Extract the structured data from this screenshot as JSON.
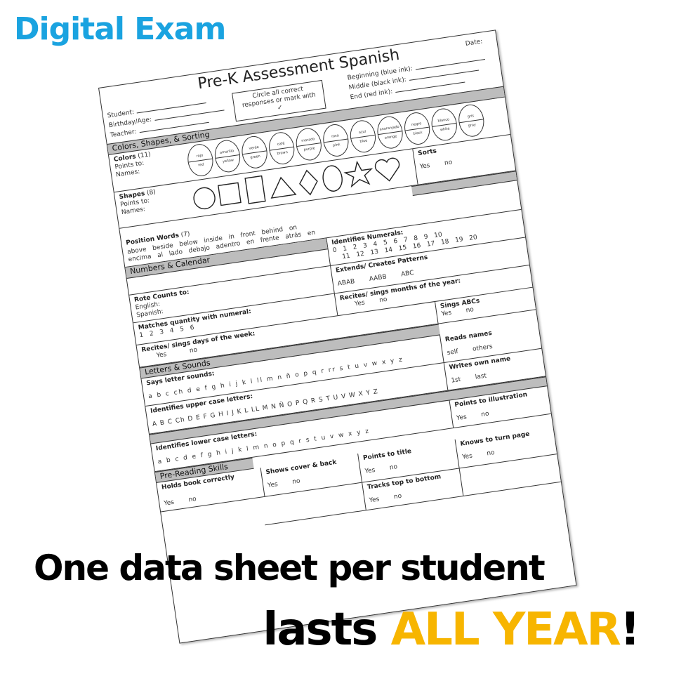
{
  "brand": "Digital Exam",
  "sheet": {
    "title": "Pre-K Assessment Spanish",
    "date": "Date:",
    "instruction": "Circle all correct responses or mark with ✓",
    "beginning": "Beginning (blue ink):",
    "middle": "Middle (black ink):",
    "end": "End (red ink):",
    "student": "Student:",
    "birthday": "Birthday/Age:",
    "teacher": "Teacher:",
    "sections": {
      "colors": "Colors, Shapes, & Sorting",
      "numbers": "Numbers & Calendar",
      "letters": "Letters & Sounds",
      "reading": "Pre-Reading Skills"
    },
    "colors": {
      "label": "Colors",
      "count": "(11)",
      "points": "Points to:",
      "names": "Names:",
      "items": [
        [
          "rojo",
          "red"
        ],
        [
          "amarillo",
          "yellow"
        ],
        [
          "verde",
          "green"
        ],
        [
          "café",
          "brown"
        ],
        [
          "morado",
          "purple"
        ],
        [
          "rosa",
          "pink"
        ],
        [
          "azul",
          "blue"
        ],
        [
          "anaranjado",
          "orange"
        ],
        [
          "negro",
          "black"
        ],
        [
          "blanco",
          "white"
        ],
        [
          "gris",
          "gray"
        ]
      ]
    },
    "shapes": {
      "label": "Shapes",
      "count": "(8)",
      "points": "Points to:",
      "names": "Names:"
    },
    "sorts": {
      "label": "Sorts",
      "options": "Yes no"
    },
    "position": {
      "label": "Position Words",
      "count": "(7)",
      "english": "above beside below inside in front behind on",
      "spanish": "encima al lado debajo adentro en frente atrás en"
    },
    "numerals": {
      "label": "Identifies Numerals:",
      "row1": "0 1 2 3 4 5 6 7 8 9 10",
      "row2": "11 12 13 14 15 16 17 18 19 20"
    },
    "rote": {
      "label": "Rote Counts to:",
      "english": "English:",
      "spanish": "Spanish:"
    },
    "patterns": {
      "label": "Extends/ Creates Patterns",
      "options": "ABAB AABB ABC"
    },
    "matches": {
      "label": "Matches quantity with numeral:",
      "options": "1 2 3 4 5 6"
    },
    "months": {
      "label": "Recites/ sings months of the year:",
      "options": "Yes no"
    },
    "days": {
      "label": "Recites/ sings days of the week:",
      "options": "Yes no"
    },
    "abcs": {
      "label": "Sings ABCs",
      "options": "Yes no"
    },
    "sounds": {
      "label": "Says letter sounds:",
      "letters": "a b c ch d e f g h i j k l ll m n ñ o p q r rr s t u v w x y z"
    },
    "readsnames": {
      "label": "Reads names",
      "options": "self others"
    },
    "upper": {
      "label": "Identifies upper case letters:",
      "letters": "A B C Ch D E F G H I J K L LL M N Ñ O P Q R S T U V W X Y Z"
    },
    "writesname": {
      "label": "Writes own name",
      "options": "1st last"
    },
    "lower": {
      "label": "Identifies lower case letters:",
      "letters": "a b c d e f g h i j k l m n o p q r s t u v w x y z"
    },
    "illustration": {
      "label": "Points to illustration",
      "options": "Yes no"
    },
    "holds": {
      "label": "Holds book correctly",
      "options": "Yes no"
    },
    "cover": {
      "label": "Shows cover & back",
      "options": "Yes no"
    },
    "ptitle": {
      "label": "Points to title",
      "options": "Yes no"
    },
    "turn": {
      "label": "Knows to turn page",
      "options": "Yes no"
    },
    "tracks": {
      "label": "Tracks top to bottom",
      "options": "Yes no"
    }
  },
  "tagline": {
    "line1": "One data sheet per student",
    "line2a": "lasts ",
    "line2b": "ALL YEAR",
    "line2c": "!"
  },
  "colors_hex": {
    "brand": "#1aa3e0",
    "highlight": "#f7b500",
    "band": "#bdbdbd"
  }
}
